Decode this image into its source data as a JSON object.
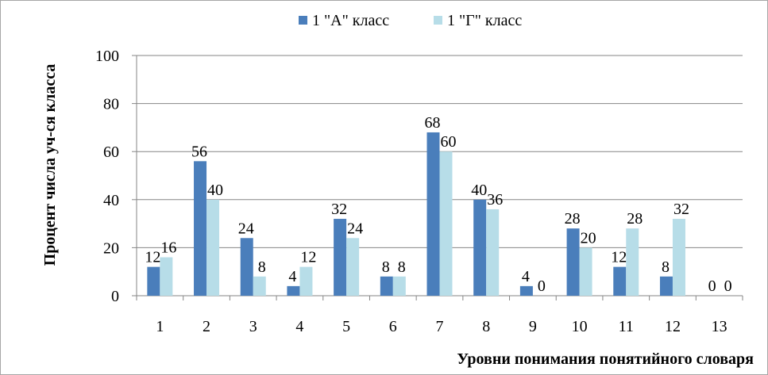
{
  "chart_data": {
    "type": "bar",
    "title": "",
    "xlabel": "Уровни понимания понятийного словаря",
    "ylabel": "Процент числа уч-ся класса",
    "categories": [
      "1",
      "2",
      "3",
      "4",
      "5",
      "6",
      "7",
      "8",
      "9",
      "10",
      "11",
      "12",
      "13"
    ],
    "ylim": [
      0,
      100
    ],
    "yticks": [
      0,
      20,
      40,
      60,
      80,
      100
    ],
    "grid": true,
    "legend_position": "top",
    "series": [
      {
        "name": "1 \"А\" класс",
        "color": "#4a7ebb",
        "values": [
          12,
          56,
          24,
          4,
          32,
          8,
          68,
          40,
          4,
          28,
          12,
          8,
          0
        ]
      },
      {
        "name": "1 \"Г\" класс",
        "color": "#b7dde8",
        "values": [
          16,
          40,
          8,
          12,
          24,
          8,
          60,
          36,
          0,
          20,
          28,
          32,
          0
        ]
      }
    ]
  }
}
